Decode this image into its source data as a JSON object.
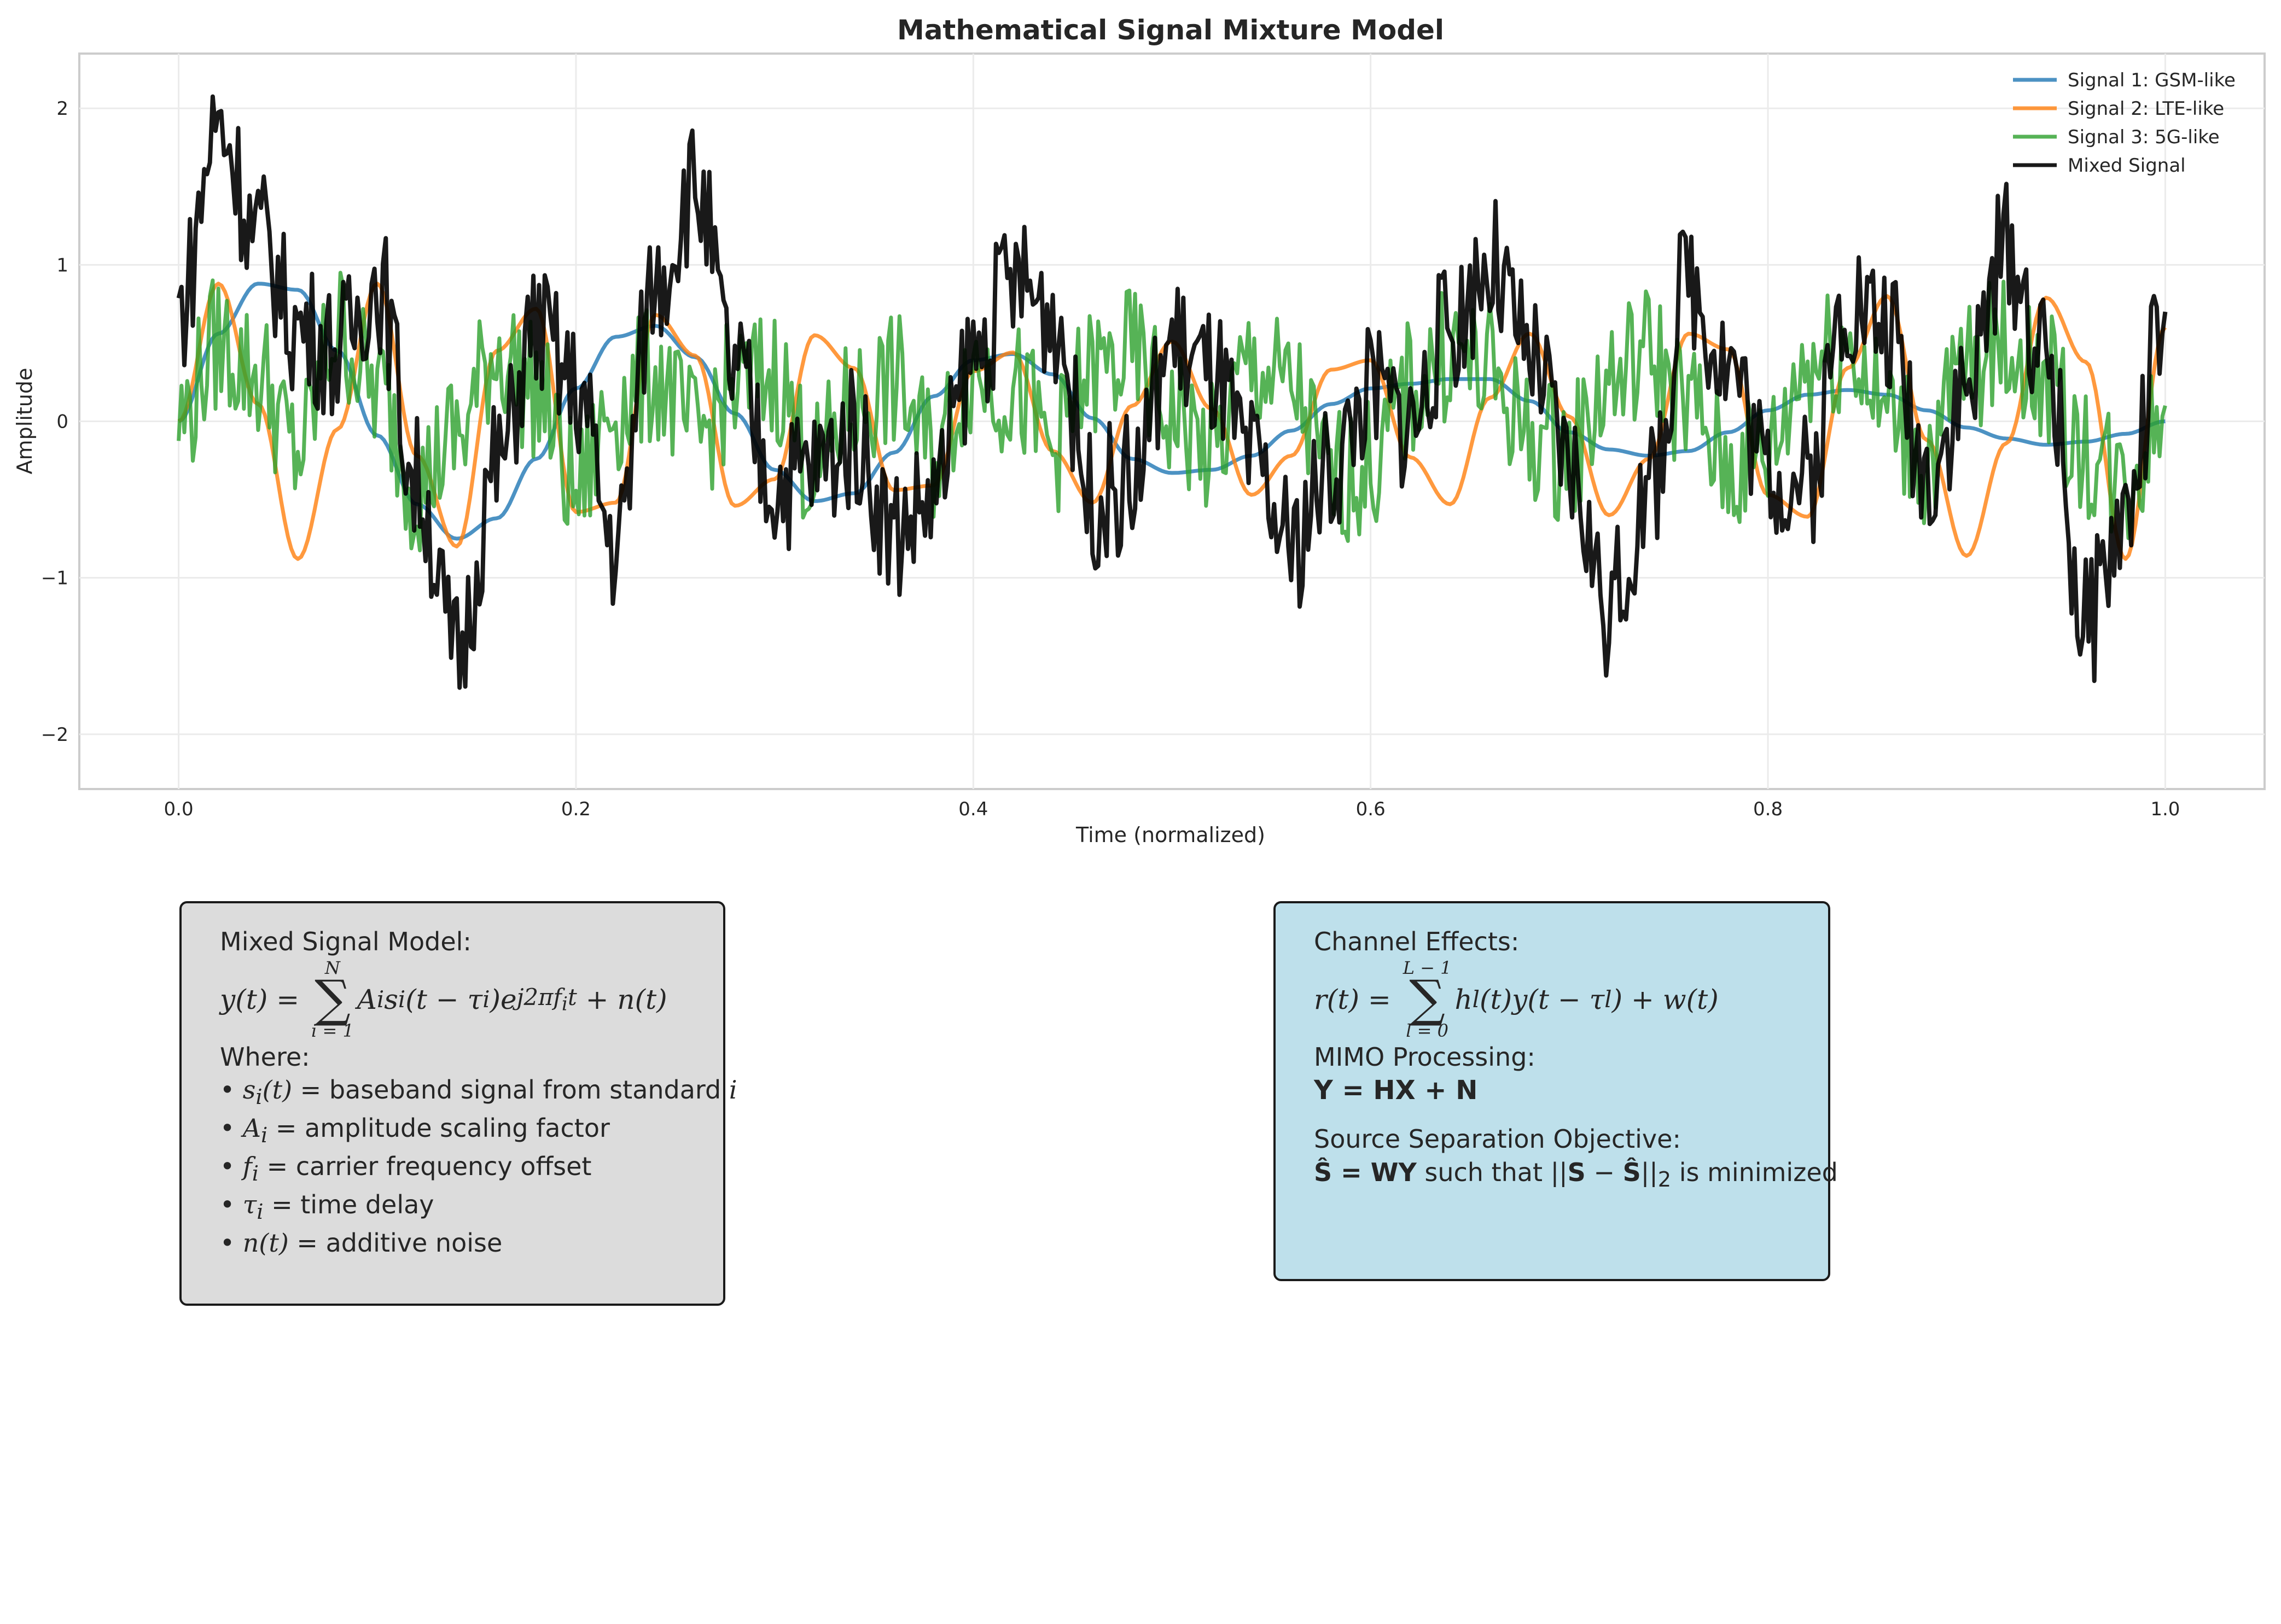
{
  "chart_data": {
    "type": "line",
    "title": "Mathematical Signal Mixture Model",
    "xlabel": "Time (normalized)",
    "ylabel": "Amplitude",
    "xlim": [
      -0.05,
      1.05
    ],
    "ylim": [
      -2.35,
      2.35
    ],
    "xticks": [
      0.0,
      0.2,
      0.4,
      0.6,
      0.8,
      1.0
    ],
    "xtick_labels": [
      "0.0",
      "0.2",
      "0.4",
      "0.6",
      "0.8",
      "1.0"
    ],
    "yticks": [
      -2,
      -1,
      0,
      1,
      2
    ],
    "ytick_labels": [
      "−2",
      "−1",
      "0",
      "1",
      "2"
    ],
    "grid": true,
    "legend_position": "top-right",
    "x": [
      0.0,
      0.02,
      0.04,
      0.06,
      0.08,
      0.1,
      0.12,
      0.14,
      0.16,
      0.18,
      0.2,
      0.22,
      0.24,
      0.26,
      0.28,
      0.3,
      0.32,
      0.34,
      0.36,
      0.38,
      0.4,
      0.42,
      0.44,
      0.46,
      0.48,
      0.5,
      0.52,
      0.54,
      0.56,
      0.58,
      0.6,
      0.62,
      0.64,
      0.66,
      0.68,
      0.7,
      0.72,
      0.74,
      0.76,
      0.78,
      0.8,
      0.82,
      0.84,
      0.86,
      0.88,
      0.9,
      0.92,
      0.94,
      0.96,
      0.98,
      1.0
    ],
    "series": [
      {
        "name": "Signal 1: GSM-like",
        "color": "#1f77b4",
        "values": [
          0.0,
          0.56,
          0.88,
          0.84,
          0.45,
          -0.09,
          -0.53,
          -0.75,
          -0.62,
          -0.24,
          0.21,
          0.54,
          0.61,
          0.41,
          0.05,
          -0.31,
          -0.51,
          -0.46,
          -0.2,
          0.16,
          0.39,
          0.43,
          0.3,
          0.02,
          -0.24,
          -0.33,
          -0.31,
          -0.22,
          -0.06,
          0.11,
          0.21,
          0.24,
          0.27,
          0.27,
          0.13,
          -0.07,
          -0.18,
          -0.22,
          -0.19,
          -0.07,
          0.07,
          0.17,
          0.2,
          0.17,
          0.07,
          -0.04,
          -0.11,
          -0.15,
          -0.13,
          -0.08,
          0.0
        ]
      },
      {
        "name": "Signal 2: LTE-like",
        "color": "#ff7f0e",
        "values": [
          0.0,
          0.88,
          0.11,
          -0.88,
          -0.05,
          0.88,
          -0.22,
          -0.8,
          0.45,
          0.72,
          -0.58,
          -0.52,
          0.68,
          0.42,
          -0.54,
          -0.37,
          0.55,
          0.34,
          -0.44,
          -0.41,
          0.32,
          0.44,
          -0.19,
          -0.52,
          0.1,
          0.51,
          0.08,
          -0.47,
          -0.22,
          0.33,
          0.39,
          -0.23,
          -0.53,
          0.15,
          0.56,
          0.03,
          -0.6,
          -0.24,
          0.56,
          0.46,
          -0.47,
          -0.61,
          0.34,
          0.8,
          -0.12,
          -0.86,
          -0.14,
          0.79,
          0.38,
          -0.88,
          0.6
        ]
      },
      {
        "name": "Signal 3: 5G-like",
        "color": "#2ca02c",
        "values": [
          0.0,
          0.5,
          0.3,
          -0.2,
          0.6,
          0.2,
          -0.4,
          -0.1,
          0.45,
          0.2,
          -0.45,
          0.1,
          0.3,
          -0.1,
          0.2,
          0.3,
          -0.3,
          0.1,
          0.25,
          -0.2,
          0.35,
          0.2,
          -0.15,
          0.3,
          0.4,
          0.05,
          -0.2,
          0.35,
          0.2,
          -0.35,
          -0.3,
          0.2,
          0.45,
          0.3,
          -0.1,
          -0.2,
          0.25,
          0.45,
          0.1,
          -0.3,
          -0.2,
          0.4,
          0.5,
          0.05,
          -0.25,
          0.35,
          0.5,
          0.25,
          -0.2,
          -0.4,
          0.1
        ]
      },
      {
        "name": "Mixed Signal",
        "color": "#000000",
        "values": [
          0.7,
          1.9,
          1.2,
          0.6,
          0.45,
          0.9,
          -0.4,
          -1.5,
          -0.3,
          0.6,
          0.2,
          -0.8,
          0.9,
          1.5,
          0.3,
          -0.4,
          -0.3,
          -0.1,
          -0.7,
          -0.5,
          0.4,
          0.9,
          0.7,
          -0.5,
          -0.4,
          0.5,
          0.3,
          -0.3,
          -0.8,
          -0.3,
          0.2,
          0.0,
          0.6,
          1.0,
          0.4,
          -0.3,
          -1.2,
          -0.5,
          0.9,
          0.4,
          -0.3,
          -0.4,
          0.8,
          0.6,
          -0.3,
          0.2,
          1.1,
          0.4,
          -1.3,
          -0.6,
          0.7
        ]
      }
    ]
  },
  "box_left": {
    "heading": "Mixed Signal Model:",
    "where": "Where:",
    "bullets": [
      {
        "sym": "s",
        "sub": "i",
        "arg": "(t)",
        "text": " = baseband signal from standard ",
        "tail": "i"
      },
      {
        "sym": "A",
        "sub": "i",
        "arg": "",
        "text": " = amplitude scaling factor",
        "tail": ""
      },
      {
        "sym": "f",
        "sub": "i",
        "arg": "",
        "text": " = carrier frequency offset",
        "tail": ""
      },
      {
        "sym": "τ",
        "sub": "i",
        "arg": "",
        "text": " = time delay",
        "tail": ""
      },
      {
        "sym": "n",
        "sub": "",
        "arg": "(t)",
        "text": " = additive noise",
        "tail": ""
      }
    ]
  },
  "box_right": {
    "heading": "Channel Effects:",
    "mimo_heading": "MIMO Processing:",
    "mimo_eq": "Y = HX + N",
    "objective_heading": "Source Separation Objective:",
    "objective_mid": " such that ",
    "objective_tail": " is minimized"
  }
}
